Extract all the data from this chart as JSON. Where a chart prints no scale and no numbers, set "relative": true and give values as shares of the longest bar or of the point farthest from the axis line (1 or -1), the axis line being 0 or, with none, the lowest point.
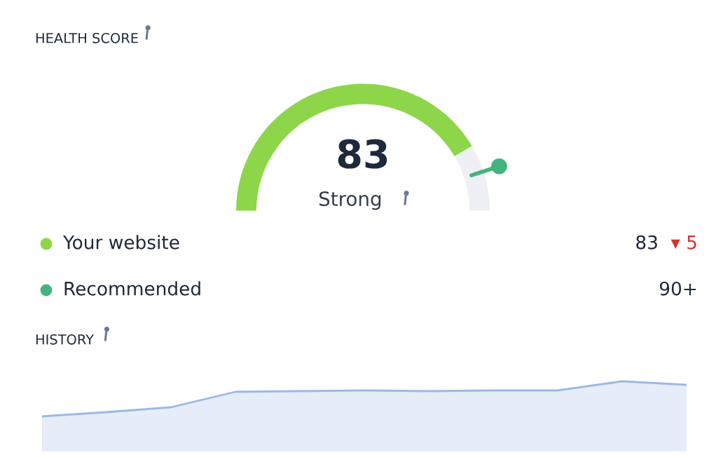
{
  "chart_data": [
    {
      "type": "donut",
      "title": "HEALTH SCORE",
      "categories": [
        null,
        null,
        null
      ],
      "values": [
        83,
        7,
        10
      ],
      "colors": [
        "#8ed649",
        "#eef0f5",
        "#eef0f5"
      ],
      "annotations": [
        "83",
        "Strong"
      ]
    },
    {
      "type": "other",
      "annotations": [
        "Your website",
        "83",
        "▾ 5",
        "Recommended",
        "90+"
      ],
      "colors": [
        "#8ed649",
        "#43b47d"
      ]
    },
    {
      "type": "area",
      "title": "HISTORY",
      "relative": true,
      "categories": [
        null,
        null,
        null,
        null,
        null,
        null,
        null,
        null,
        null,
        null,
        null
      ],
      "series": [
        {
          "color": "#9cb9e3",
          "values": [
            0.5,
            0.56,
            0.63,
            0.85,
            0.86,
            0.87,
            0.86,
            0.87,
            0.87,
            1.0,
            0.95
          ]
        }
      ]
    }
  ]
}
